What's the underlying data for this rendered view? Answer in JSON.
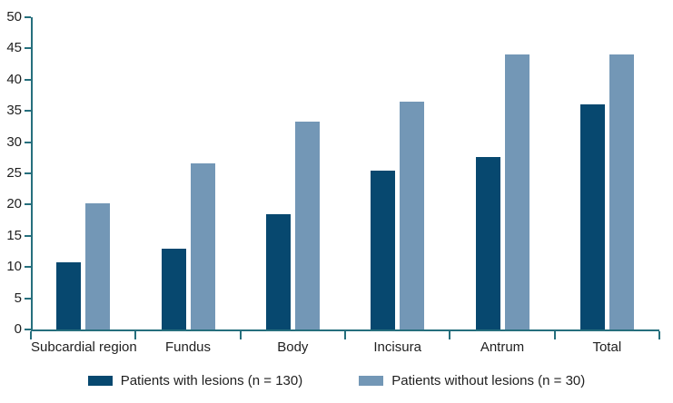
{
  "chart_data": {
    "type": "bar",
    "title": "",
    "xlabel": "",
    "ylabel": "",
    "categories": [
      "Subcardial region",
      "Fundus",
      "Body",
      "Incisura",
      "Antrum",
      "Total"
    ],
    "series": [
      {
        "name": "Patients with lesions (n = 130)",
        "color": "#07486f",
        "values": [
          10.7,
          13.0,
          18.5,
          25.4,
          27.6,
          36.1
        ]
      },
      {
        "name": "Patients without lesions (n = 30)",
        "color": "#7397b6",
        "values": [
          20.2,
          26.6,
          33.3,
          36.5,
          44.1,
          44.1
        ]
      }
    ],
    "ylim": [
      0,
      50
    ],
    "ytick_step": 5,
    "grid": false,
    "legend_position": "bottom",
    "axis_color": "#266f7d",
    "text_color": "#1f1f1f",
    "background_color": "#ffffff"
  }
}
